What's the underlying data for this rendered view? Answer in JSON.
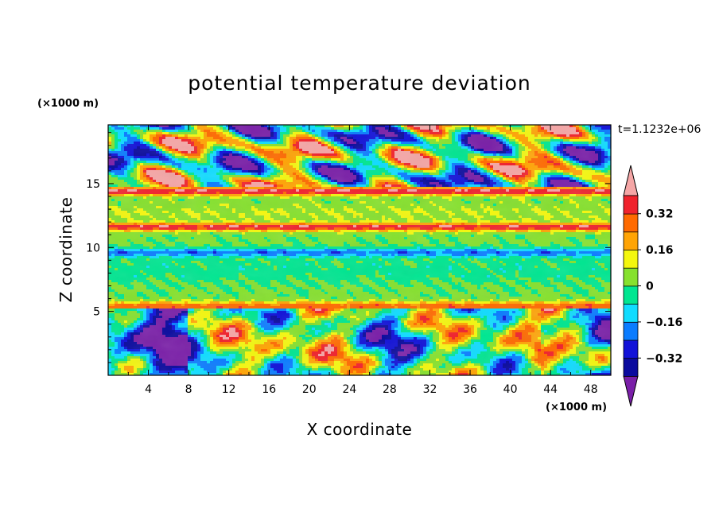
{
  "chart_data": {
    "type": "heatmap",
    "title": "potential temperature deviation",
    "xlabel": "X coordinate",
    "ylabel": "Z coordinate",
    "x_unit": "(×1000 m)",
    "y_unit": "(×1000 m)",
    "time_label": "t=1.1232e+06",
    "xlim": [
      0,
      50
    ],
    "ylim": [
      0,
      19.6
    ],
    "x_ticks": [
      4,
      8,
      12,
      16,
      20,
      24,
      28,
      32,
      36,
      40,
      44,
      48
    ],
    "x_tick_labels": [
      "4",
      "8",
      "12",
      "16",
      "20",
      "24",
      "28",
      "32",
      "36",
      "40",
      "44",
      "48"
    ],
    "y_ticks": [
      5,
      10,
      15
    ],
    "y_tick_labels": [
      "5",
      "10",
      "15"
    ],
    "colorbar": {
      "levels": [
        -0.4,
        -0.32,
        -0.24,
        -0.16,
        -0.08,
        0,
        0.08,
        0.16,
        0.24,
        0.32,
        0.4
      ],
      "tick_values": [
        0.32,
        0.16,
        0,
        -0.16,
        -0.32
      ],
      "tick_labels": [
        "0.32",
        "0.16",
        "0",
        "−0.16",
        "−0.32"
      ],
      "colors": [
        "#7a1fa8",
        "#0b0b9e",
        "#1212d8",
        "#0a7cff",
        "#10dcff",
        "#00e691",
        "#86e12e",
        "#f4f70e",
        "#ffa405",
        "#ff6a00",
        "#f0232d",
        "#f5a6a6"
      ],
      "extend": "both"
    },
    "bands": [
      {
        "z": [
          0,
          1.2
        ],
        "description_value": -0.05
      },
      {
        "z": [
          5.2,
          5.6
        ],
        "description_value": 0.3
      },
      {
        "z": [
          9.4,
          9.8
        ],
        "description_value": -0.18
      },
      {
        "z": [
          11.5,
          11.8
        ],
        "description_value": 0.32
      },
      {
        "z": [
          14.3,
          14.6
        ],
        "description_value": 0.34
      }
    ]
  }
}
